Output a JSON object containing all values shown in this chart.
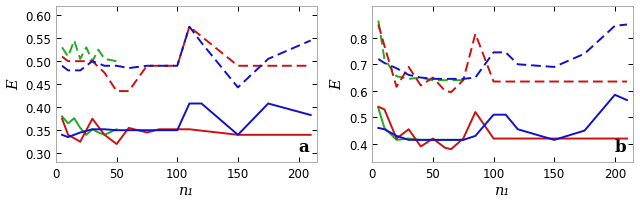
{
  "panel_a": {
    "dashed": {
      "blue": {
        "x": [
          5,
          10,
          20,
          30,
          40,
          50,
          60,
          75,
          85,
          100,
          110,
          120,
          150,
          175,
          210
        ],
        "y": [
          0.49,
          0.48,
          0.48,
          0.5,
          0.49,
          0.49,
          0.485,
          0.49,
          0.49,
          0.49,
          0.575,
          0.54,
          0.443,
          0.505,
          0.545
        ]
      },
      "red": {
        "x": [
          5,
          10,
          20,
          30,
          40,
          50,
          60,
          75,
          85,
          100,
          110,
          150,
          210
        ],
        "y": [
          0.51,
          0.5,
          0.5,
          0.5,
          0.475,
          0.435,
          0.435,
          0.49,
          0.49,
          0.49,
          0.575,
          0.49,
          0.49
        ]
      },
      "green": {
        "x": [
          5,
          10,
          15,
          20,
          25,
          30,
          35,
          40,
          50
        ],
        "y": [
          0.53,
          0.51,
          0.545,
          0.505,
          0.53,
          0.5,
          0.525,
          0.505,
          0.5
        ]
      }
    },
    "solid": {
      "blue": {
        "x": [
          5,
          10,
          20,
          30,
          40,
          50,
          60,
          75,
          85,
          100,
          110,
          120,
          150,
          175,
          210
        ],
        "y": [
          0.34,
          0.335,
          0.345,
          0.352,
          0.352,
          0.35,
          0.35,
          0.35,
          0.35,
          0.35,
          0.408,
          0.408,
          0.34,
          0.408,
          0.383
        ]
      },
      "red": {
        "x": [
          5,
          10,
          20,
          30,
          40,
          50,
          60,
          75,
          85,
          100,
          110,
          150,
          210
        ],
        "y": [
          0.375,
          0.34,
          0.325,
          0.375,
          0.34,
          0.32,
          0.355,
          0.345,
          0.352,
          0.352,
          0.352,
          0.34,
          0.34
        ]
      },
      "green": {
        "x": [
          5,
          10,
          15,
          20,
          25,
          30,
          35,
          40,
          50
        ],
        "y": [
          0.38,
          0.365,
          0.376,
          0.355,
          0.34,
          0.352,
          0.345,
          0.34,
          0.352
        ]
      }
    },
    "ylabel": "E",
    "xlabel": "n₁",
    "label": "a",
    "ylim": [
      0.28,
      0.62
    ],
    "yticks": [
      0.3,
      0.35,
      0.4,
      0.45,
      0.5,
      0.55,
      0.6
    ],
    "xlim": [
      0,
      215
    ],
    "xticks": [
      0,
      50,
      100,
      150,
      200
    ]
  },
  "panel_b": {
    "dashed": {
      "blue": {
        "x": [
          5,
          10,
          20,
          30,
          40,
          50,
          65,
          75,
          85,
          100,
          110,
          120,
          150,
          175,
          200,
          210
        ],
        "y": [
          0.72,
          0.705,
          0.685,
          0.66,
          0.65,
          0.645,
          0.645,
          0.645,
          0.65,
          0.745,
          0.745,
          0.7,
          0.69,
          0.74,
          0.845,
          0.85
        ]
      },
      "red": {
        "x": [
          5,
          10,
          20,
          30,
          40,
          50,
          60,
          65,
          75,
          85,
          100,
          110,
          150,
          210
        ],
        "y": [
          0.85,
          0.77,
          0.615,
          0.69,
          0.62,
          0.65,
          0.6,
          0.595,
          0.64,
          0.815,
          0.635,
          0.635,
          0.635,
          0.635
        ]
      },
      "green": {
        "x": [
          5,
          10,
          20,
          30,
          40,
          50,
          65,
          75
        ],
        "y": [
          0.865,
          0.72,
          0.655,
          0.645,
          0.65,
          0.64,
          0.64,
          0.64
        ]
      }
    },
    "solid": {
      "blue": {
        "x": [
          5,
          10,
          20,
          30,
          40,
          50,
          65,
          75,
          85,
          100,
          110,
          120,
          150,
          175,
          200,
          210
        ],
        "y": [
          0.46,
          0.455,
          0.43,
          0.415,
          0.415,
          0.415,
          0.415,
          0.415,
          0.43,
          0.51,
          0.51,
          0.455,
          0.415,
          0.45,
          0.585,
          0.565
        ]
      },
      "red": {
        "x": [
          5,
          10,
          20,
          30,
          40,
          50,
          60,
          65,
          75,
          85,
          100,
          110,
          150,
          210
        ],
        "y": [
          0.54,
          0.53,
          0.42,
          0.455,
          0.39,
          0.42,
          0.385,
          0.38,
          0.42,
          0.52,
          0.42,
          0.42,
          0.42,
          0.42
        ]
      },
      "green": {
        "x": [
          5,
          10,
          20,
          30,
          40,
          50,
          65,
          75
        ],
        "y": [
          0.535,
          0.46,
          0.415,
          0.42,
          0.415,
          0.415,
          0.415,
          0.415
        ]
      }
    },
    "ylabel": "E",
    "xlabel": "n₁",
    "label": "b",
    "ylim": [
      0.33,
      0.92
    ],
    "yticks": [
      0.4,
      0.5,
      0.6,
      0.7,
      0.8
    ],
    "xlim": [
      0,
      215
    ],
    "xticks": [
      0,
      50,
      100,
      150,
      200
    ]
  },
  "colors": {
    "blue": "#1111cc",
    "red": "#cc1111",
    "green": "#22aa22"
  },
  "line_width": 1.4,
  "fig_width": 6.4,
  "fig_height": 2.05
}
